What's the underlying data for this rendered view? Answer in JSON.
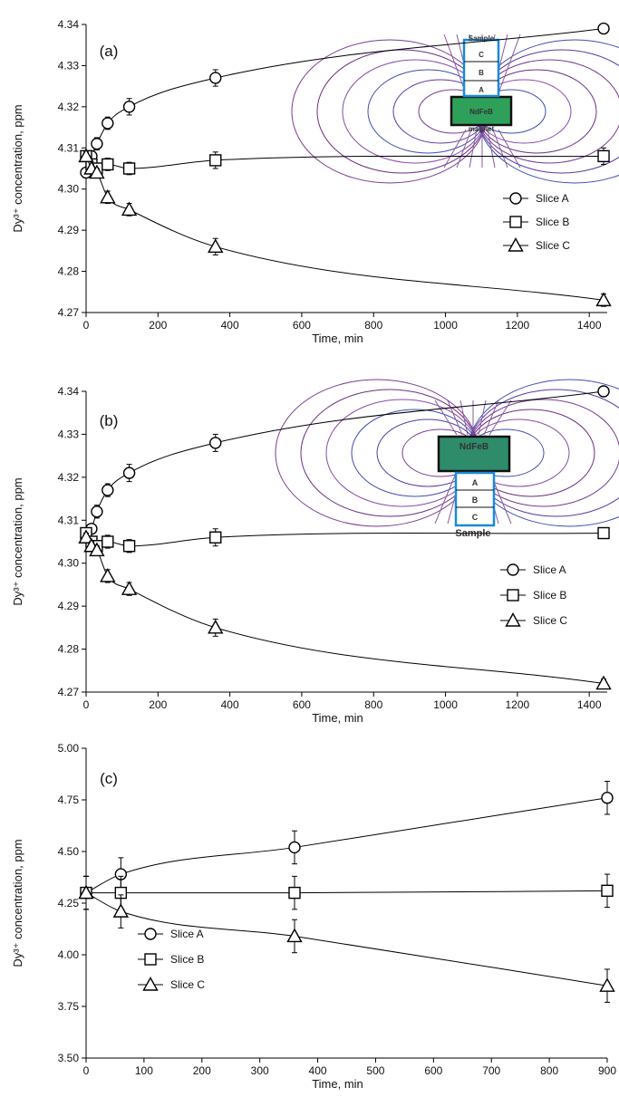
{
  "chart_data": [
    {
      "type": "line",
      "panel_label": "(a)",
      "xlabel": "Time, min",
      "ylabel": "Dy³⁺ concentration, ppm",
      "xlim": [
        0,
        1450
      ],
      "ylim": [
        4.27,
        4.34
      ],
      "xticks": [
        "0",
        "200",
        "400",
        "600",
        "800",
        "1000",
        "1200",
        "1400"
      ],
      "yticks": [
        "4.27",
        "4.28",
        "4.29",
        "4.30",
        "4.31",
        "4.32",
        "4.33",
        "4.34"
      ],
      "legend_position": "right",
      "series": [
        {
          "name": "Slice A",
          "marker": "circle",
          "x": [
            0,
            15,
            30,
            60,
            120,
            360,
            1440
          ],
          "y": [
            4.304,
            4.308,
            4.311,
            4.316,
            4.32,
            4.327,
            4.339
          ],
          "err": [
            0.001,
            0.001,
            0.0015,
            0.0015,
            0.002,
            0.002,
            0.0005
          ]
        },
        {
          "name": "Slice B",
          "marker": "square",
          "x": [
            0,
            15,
            30,
            60,
            120,
            360,
            1440
          ],
          "y": [
            4.308,
            4.306,
            4.305,
            4.306,
            4.305,
            4.307,
            4.308
          ],
          "err": [
            0.001,
            0.001,
            0.001,
            0.0015,
            0.0015,
            0.002,
            0.002
          ]
        },
        {
          "name": "Slice C",
          "marker": "triangle",
          "x": [
            0,
            15,
            30,
            60,
            120,
            360,
            1440
          ],
          "y": [
            4.308,
            4.305,
            4.304,
            4.298,
            4.295,
            4.286,
            4.273
          ],
          "err": [
            0.001,
            0.001,
            0.001,
            0.0015,
            0.0015,
            0.002,
            0.0015
          ]
        }
      ],
      "inset": {
        "labels": [
          "Sample",
          "C",
          "B",
          "A",
          "NdFeB",
          "magnet"
        ],
        "position": "top-right"
      }
    },
    {
      "type": "line",
      "panel_label": "(b)",
      "xlabel": "Time, min",
      "ylabel": "Dy³⁺ concentration, ppm",
      "xlim": [
        0,
        1450
      ],
      "ylim": [
        4.27,
        4.34
      ],
      "xticks": [
        "0",
        "200",
        "400",
        "600",
        "800",
        "1000",
        "1200",
        "1400"
      ],
      "yticks": [
        "4.27",
        "4.28",
        "4.29",
        "4.30",
        "4.31",
        "4.32",
        "4.33",
        "4.34"
      ],
      "legend_position": "right",
      "series": [
        {
          "name": "Slice A",
          "marker": "circle",
          "x": [
            0,
            15,
            30,
            60,
            120,
            360,
            1440
          ],
          "y": [
            4.306,
            4.308,
            4.312,
            4.317,
            4.321,
            4.328,
            4.34
          ],
          "err": [
            0.001,
            0.001,
            0.0015,
            0.0015,
            0.002,
            0.002,
            0.0005
          ]
        },
        {
          "name": "Slice B",
          "marker": "square",
          "x": [
            0,
            15,
            30,
            60,
            120,
            360,
            1440
          ],
          "y": [
            4.307,
            4.305,
            4.304,
            4.305,
            4.304,
            4.306,
            4.307
          ],
          "err": [
            0.001,
            0.001,
            0.001,
            0.0015,
            0.0015,
            0.002,
            0.001
          ]
        },
        {
          "name": "Slice C",
          "marker": "triangle",
          "x": [
            0,
            15,
            30,
            60,
            120,
            360,
            1440
          ],
          "y": [
            4.306,
            4.304,
            4.303,
            4.297,
            4.294,
            4.285,
            4.272
          ],
          "err": [
            0.001,
            0.001,
            0.001,
            0.0015,
            0.0015,
            0.002,
            0.001
          ]
        }
      ],
      "inset": {
        "labels": [
          "NdFeB",
          "A",
          "B",
          "C",
          "Sample"
        ],
        "position": "top-right"
      }
    },
    {
      "type": "line",
      "panel_label": "(c)",
      "xlabel": "Time, min",
      "ylabel": "Dy³⁺ concentration, ppm",
      "xlim": [
        0,
        900
      ],
      "ylim": [
        3.5,
        5.0
      ],
      "xticks": [
        "0",
        "100",
        "200",
        "300",
        "400",
        "500",
        "600",
        "700",
        "800",
        "900"
      ],
      "yticks": [
        "3.50",
        "3.75",
        "4.00",
        "4.25",
        "4.50",
        "4.75",
        "5.00"
      ],
      "legend_position": "bottom-left",
      "series": [
        {
          "name": "Slice A",
          "marker": "circle",
          "x": [
            0,
            60,
            360,
            900
          ],
          "y": [
            4.3,
            4.39,
            4.52,
            4.76
          ],
          "err": [
            0.08,
            0.08,
            0.08,
            0.08
          ]
        },
        {
          "name": "Slice B",
          "marker": "square",
          "x": [
            0,
            60,
            360,
            900
          ],
          "y": [
            4.3,
            4.3,
            4.3,
            4.31
          ],
          "err": [
            0.08,
            0.08,
            0.08,
            0.08
          ]
        },
        {
          "name": "Slice C",
          "marker": "triangle",
          "x": [
            0,
            60,
            360,
            900
          ],
          "y": [
            4.3,
            4.21,
            4.09,
            3.85
          ],
          "err": [
            0.08,
            0.08,
            0.08,
            0.08
          ]
        }
      ]
    }
  ]
}
